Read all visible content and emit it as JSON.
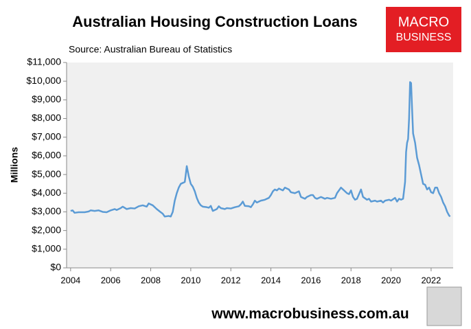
{
  "chart_data": {
    "type": "line",
    "title": "Australian Housing Construction Loans",
    "subtitle": "Source: Australian Bureau of Statistics",
    "y_label": "Millions",
    "x": [
      2004.0,
      2004.1,
      2004.2,
      2004.4,
      2004.7,
      2004.9,
      2005.0,
      2005.2,
      2005.4,
      2005.6,
      2005.8,
      2006.0,
      2006.2,
      2006.3,
      2006.5,
      2006.6,
      2006.8,
      2007.0,
      2007.2,
      2007.4,
      2007.6,
      2007.8,
      2007.9,
      2008.1,
      2008.3,
      2008.5,
      2008.6,
      2008.7,
      2008.9,
      2009.0,
      2009.1,
      2009.2,
      2009.3,
      2009.4,
      2009.5,
      2009.6,
      2009.7,
      2009.75,
      2009.8,
      2009.9,
      2010.0,
      2010.1,
      2010.2,
      2010.3,
      2010.4,
      2010.5,
      2010.6,
      2010.8,
      2010.9,
      2011.0,
      2011.1,
      2011.2,
      2011.3,
      2011.4,
      2011.5,
      2011.7,
      2011.8,
      2012.0,
      2012.2,
      2012.4,
      2012.5,
      2012.6,
      2012.7,
      2012.9,
      2013.0,
      2013.1,
      2013.2,
      2013.3,
      2013.5,
      2013.7,
      2013.9,
      2014.0,
      2014.1,
      2014.2,
      2014.3,
      2014.4,
      2014.5,
      2014.6,
      2014.7,
      2014.9,
      2015.0,
      2015.2,
      2015.3,
      2015.4,
      2015.5,
      2015.6,
      2015.7,
      2015.8,
      2016.0,
      2016.1,
      2016.2,
      2016.3,
      2016.5,
      2016.6,
      2016.7,
      2016.8,
      2017.0,
      2017.2,
      2017.3,
      2017.5,
      2017.6,
      2017.8,
      2017.9,
      2018.0,
      2018.1,
      2018.2,
      2018.3,
      2018.4,
      2018.5,
      2018.6,
      2018.8,
      2018.9,
      2019.0,
      2019.2,
      2019.3,
      2019.5,
      2019.6,
      2019.7,
      2019.9,
      2020.0,
      2020.2,
      2020.3,
      2020.4,
      2020.5,
      2020.6,
      2020.7,
      2020.75,
      2020.8,
      2020.85,
      2020.9,
      2020.95,
      2021.0,
      2021.05,
      2021.1,
      2021.2,
      2021.3,
      2021.4,
      2021.5,
      2021.6,
      2021.7,
      2021.8,
      2021.9,
      2022.0,
      2022.1,
      2022.2,
      2022.3,
      2022.4,
      2022.5,
      2022.6,
      2022.7,
      2022.8,
      2022.9,
      2022.95
    ],
    "values": [
      3050,
      3080,
      2950,
      2980,
      2980,
      3020,
      3080,
      3050,
      3080,
      3000,
      2980,
      3080,
      3150,
      3100,
      3200,
      3280,
      3150,
      3200,
      3180,
      3300,
      3350,
      3280,
      3450,
      3350,
      3150,
      2980,
      2900,
      2750,
      2780,
      2750,
      3000,
      3600,
      4000,
      4300,
      4500,
      4550,
      4600,
      5000,
      5450,
      4900,
      4500,
      4350,
      4100,
      3750,
      3500,
      3350,
      3280,
      3250,
      3220,
      3320,
      3050,
      3100,
      3150,
      3300,
      3200,
      3150,
      3200,
      3180,
      3250,
      3300,
      3400,
      3550,
      3320,
      3300,
      3250,
      3400,
      3600,
      3500,
      3600,
      3650,
      3750,
      3900,
      4100,
      4200,
      4150,
      4250,
      4200,
      4150,
      4300,
      4200,
      4050,
      4000,
      4050,
      4100,
      3800,
      3750,
      3700,
      3800,
      3900,
      3900,
      3750,
      3700,
      3800,
      3750,
      3700,
      3750,
      3700,
      3750,
      4000,
      4300,
      4200,
      4000,
      3950,
      4150,
      3800,
      3650,
      3700,
      3950,
      4200,
      3800,
      3650,
      3700,
      3550,
      3600,
      3550,
      3600,
      3500,
      3600,
      3650,
      3600,
      3750,
      3550,
      3700,
      3650,
      3700,
      4600,
      6200,
      6700,
      6900,
      8000,
      9950,
      9900,
      8500,
      7200,
      6700,
      5900,
      5500,
      5000,
      4500,
      4450,
      4200,
      4300,
      4050,
      4000,
      4300,
      4300,
      4000,
      3800,
      3500,
      3300,
      3000,
      2800,
      2750
    ],
    "color": "#5b9bd5",
    "xlim": [
      2003.8,
      2023.1
    ],
    "xticks": [
      2004,
      2006,
      2008,
      2010,
      2012,
      2014,
      2016,
      2018,
      2020,
      2022
    ],
    "ylim": [
      0,
      11000
    ],
    "yticks": [
      {
        "value": 0,
        "label": "$0"
      },
      {
        "value": 1000,
        "label": "$1,000"
      },
      {
        "value": 2000,
        "label": "$2,000"
      },
      {
        "value": 3000,
        "label": "$3,000"
      },
      {
        "value": 4000,
        "label": "$4,000"
      },
      {
        "value": 5000,
        "label": "$5,000"
      },
      {
        "value": 6000,
        "label": "$6,000"
      },
      {
        "value": 7000,
        "label": "$7,000"
      },
      {
        "value": 8000,
        "label": "$8,000"
      },
      {
        "value": 9000,
        "label": "$9,000"
      },
      {
        "value": 10000,
        "label": "$10,000"
      },
      {
        "value": 11000,
        "label": "$11,000"
      }
    ],
    "grid": false
  },
  "logo": {
    "line1": "MACRO",
    "line2": "BUSINESS"
  },
  "footer": "www.macrobusiness.com.au"
}
